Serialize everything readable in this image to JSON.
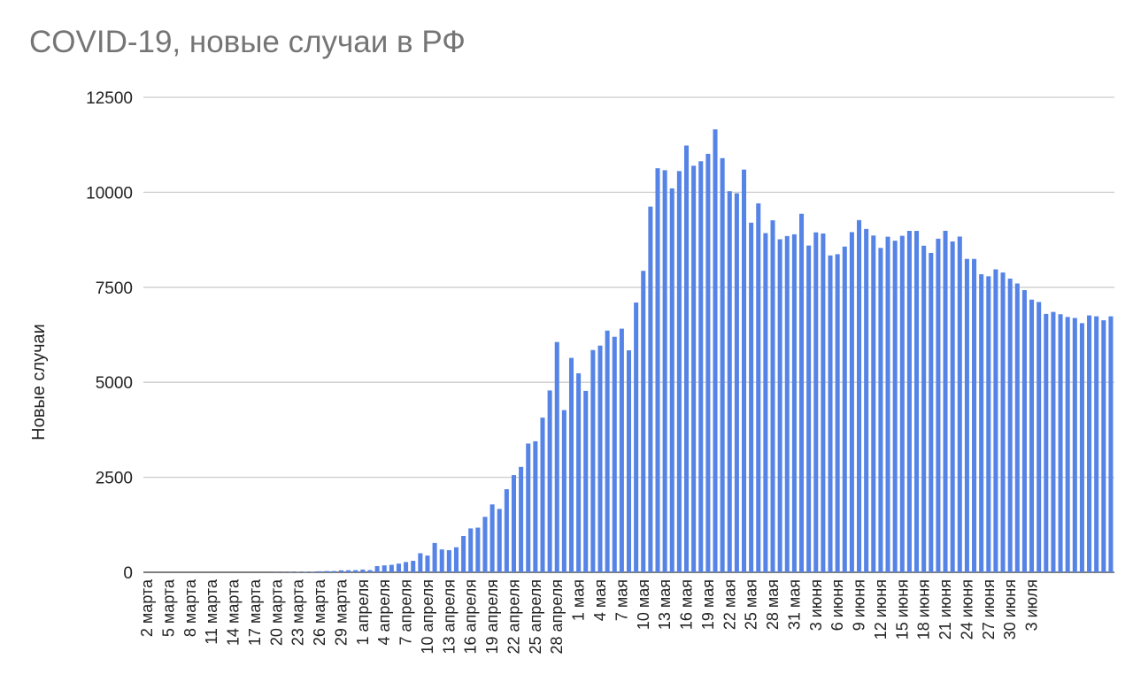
{
  "chart_data": {
    "type": "bar",
    "title": "COVID-19, новые случаи в РФ",
    "xlabel": "",
    "ylabel": "Новые случаи",
    "ylim": [
      0,
      12500
    ],
    "yticks": [
      0,
      2500,
      5000,
      7500,
      10000,
      12500
    ],
    "grid": true,
    "legend": "none",
    "bar_color": "#5684e6",
    "x_tick_labels": [
      "2 марта",
      "5 марта",
      "8 марта",
      "11 марта",
      "14 марта",
      "17 марта",
      "20 марта",
      "23 марта",
      "26 марта",
      "29 марта",
      "1 апреля",
      "4 апреля",
      "7 апреля",
      "10 апреля",
      "13 апреля",
      "16 апреля",
      "19 апреля",
      "22 апреля",
      "25 апреля",
      "28 апреля",
      "1 мая",
      "4 мая",
      "7 мая",
      "10 мая",
      "13 мая",
      "16 мая",
      "19 мая",
      "22 мая",
      "25 мая",
      "28 мая",
      "31 мая",
      "3 июня",
      "6 июня",
      "9 июня",
      "12 июня",
      "15 июня",
      "18 июня",
      "21 июня",
      "24 июня",
      "27 июня",
      "30 июня",
      "3 июля"
    ],
    "x_tick_every": 3,
    "values": [
      0,
      0,
      0,
      0,
      0,
      0,
      0,
      0,
      0,
      0,
      0,
      0,
      0,
      0,
      0,
      0,
      0,
      0,
      3,
      4,
      7,
      10,
      10,
      10,
      27,
      33,
      33,
      52,
      54,
      57,
      71,
      57,
      163,
      182,
      196,
      228,
      270,
      302,
      501,
      440,
      771,
      601,
      582,
      658,
      954,
      1154,
      1175,
      1459,
      1786,
      1667,
      2186,
      2558,
      2774,
      3388,
      3448,
      4070,
      4785,
      6060,
      4268,
      5642,
      5236,
      4774,
      5849,
      5966,
      6361,
      6198,
      6411,
      5841,
      7099,
      7933,
      9623,
      10633,
      10581,
      10102,
      10559,
      11231,
      10699,
      10817,
      11012,
      11656,
      10899,
      10028,
      9974,
      10598,
      9200,
      9709,
      8926,
      9263,
      8764,
      8849,
      8894,
      9434,
      8599,
      8946,
      8915,
      8338,
      8371,
      8572,
      8952,
      9268,
      9035,
      8863,
      8536,
      8831,
      8726,
      8855,
      8985,
      8984,
      8595,
      8404,
      8779,
      8987,
      8706,
      8835,
      8248,
      8246,
      7843,
      7790,
      7972,
      7889,
      7728,
      7600,
      7425,
      7176,
      7113,
      6800,
      6852,
      6791,
      6719,
      6693,
      6556,
      6760,
      6736,
      6632,
      6736
    ]
  }
}
